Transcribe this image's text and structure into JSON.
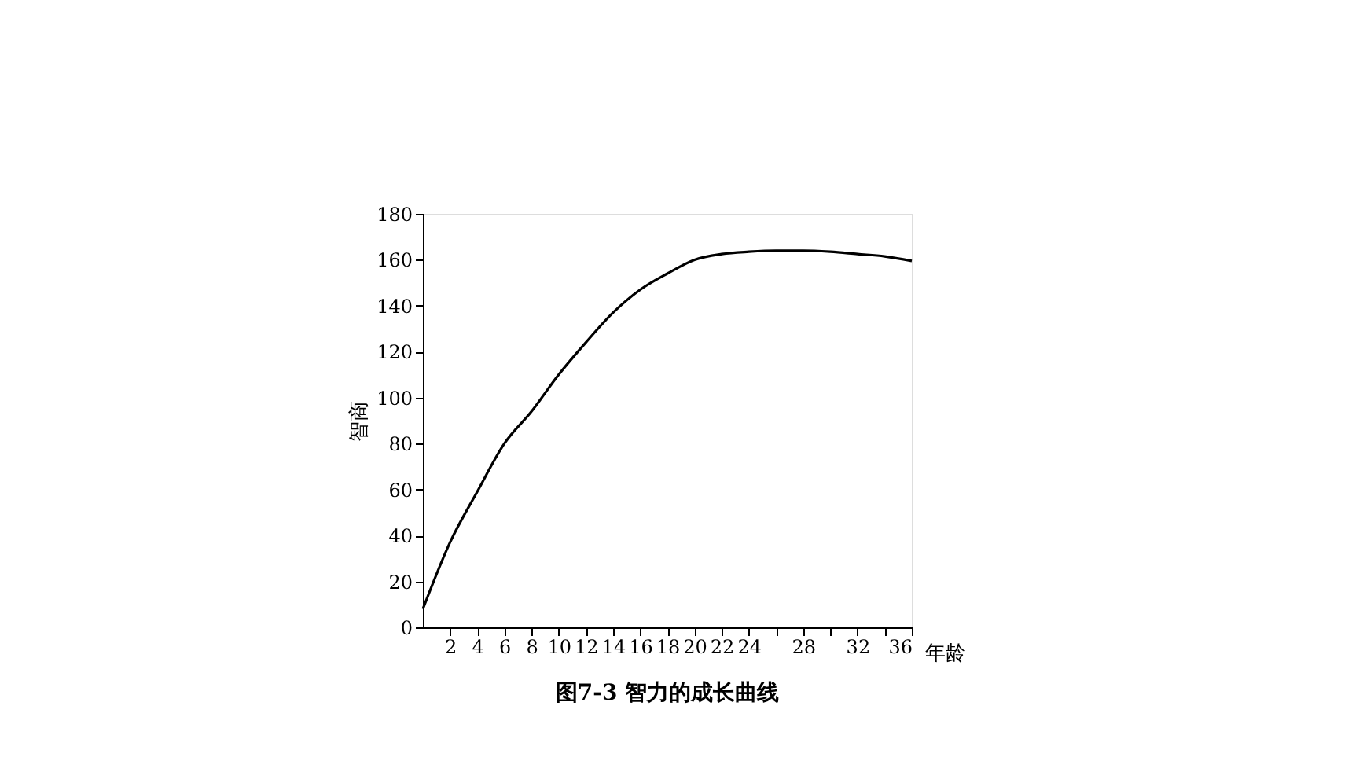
{
  "chart_data": {
    "type": "line",
    "title": "图7-3  智力的成长曲线",
    "xlabel": "年龄",
    "ylabel": "智商",
    "x": [
      0,
      2,
      4,
      6,
      8,
      10,
      12,
      14,
      16,
      18,
      20,
      22,
      24,
      26,
      28,
      30,
      32,
      34,
      36
    ],
    "series": [
      {
        "color": "#000000",
        "values": [
          8,
          37,
          59,
          80,
          94,
          110,
          124,
          137,
          147,
          154,
          160,
          162.5,
          163.5,
          164,
          164,
          163.5,
          162.5,
          161.5,
          159.5
        ]
      }
    ],
    "xlim": [
      0,
      36
    ],
    "xticks": [
      2,
      4,
      6,
      8,
      10,
      12,
      14,
      16,
      18,
      20,
      22,
      24,
      {
        "value": 26,
        "label": null
      },
      28,
      {
        "value": 30,
        "label": null
      },
      32,
      {
        "value": 34,
        "label": null
      },
      36
    ],
    "ylim": [
      0,
      180
    ],
    "yticks": [
      0,
      20,
      40,
      60,
      80,
      100,
      120,
      140,
      160,
      180
    ],
    "grid": false,
    "marker": "none",
    "line_style": "solid"
  }
}
